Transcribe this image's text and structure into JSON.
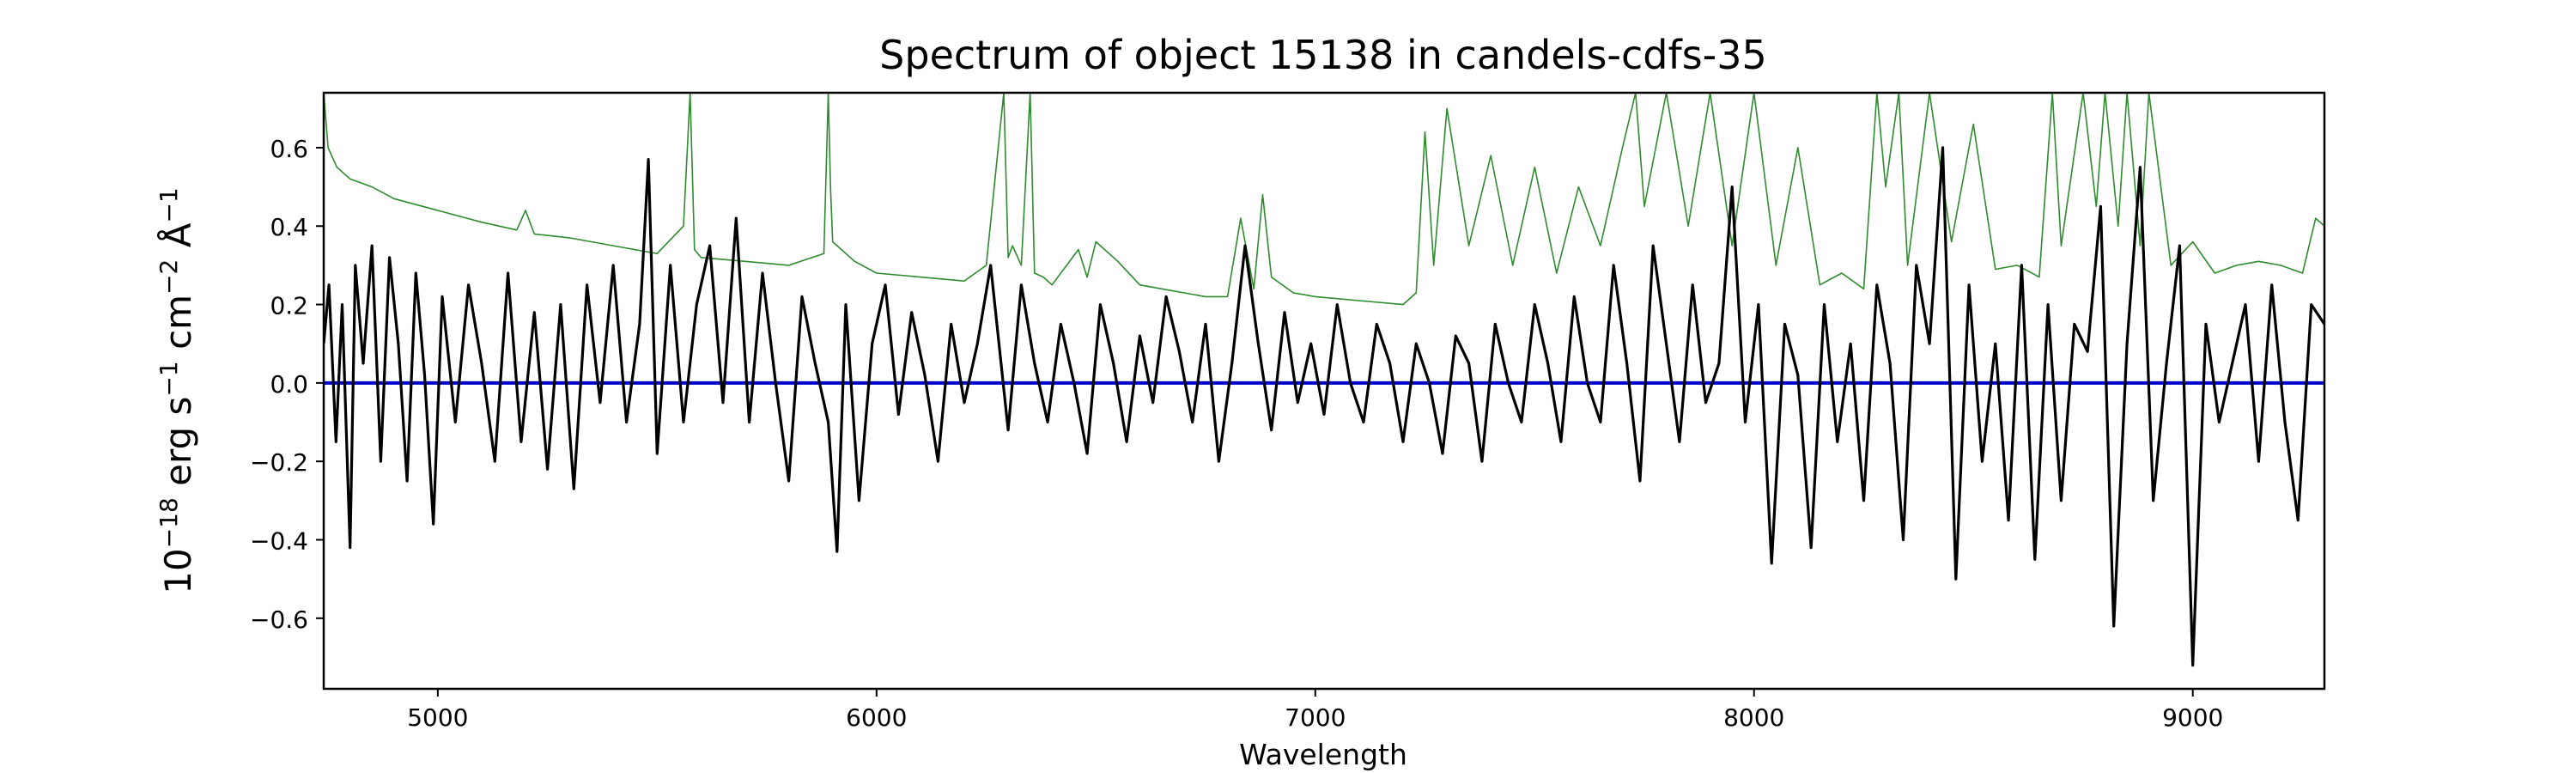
{
  "chart_data": {
    "type": "line",
    "title": "Spectrum of object 15138 in candels-cdfs-35",
    "xlabel": "Wavelength",
    "ylabel": {
      "base": "10",
      "exp1": "−18",
      "t1": " erg s",
      "exp2": "−1",
      "t2": " cm",
      "exp3": "−2",
      "t3": " Å",
      "exp4": "−1"
    },
    "xlim": [
      4740,
      9300
    ],
    "ylim": [
      -0.78,
      0.74
    ],
    "xticks": [
      5000,
      6000,
      7000,
      8000,
      9000
    ],
    "xtick_labels": [
      "5000",
      "6000",
      "7000",
      "8000",
      "9000"
    ],
    "yticks": [
      -0.6,
      -0.4,
      -0.2,
      0.0,
      0.2,
      0.4,
      0.6
    ],
    "ytick_labels": [
      "−0.6",
      "−0.4",
      "−0.2",
      "0.0",
      "0.2",
      "0.4",
      "0.6"
    ],
    "grid": false,
    "series": [
      {
        "role": "zero line",
        "color": "#0000cc",
        "x": [
          4740,
          9300
        ],
        "y": [
          0.0,
          0.0
        ]
      },
      {
        "role": "error spectrum",
        "color": "#2e8b2e",
        "x": [
          4740,
          4750,
          4770,
          4800,
          4850,
          4900,
          5000,
          5100,
          5180,
          5200,
          5220,
          5300,
          5400,
          5500,
          5560,
          5575,
          5585,
          5600,
          5700,
          5800,
          5880,
          5890,
          5895,
          5900,
          5950,
          6000,
          6100,
          6200,
          6250,
          6290,
          6300,
          6310,
          6330,
          6350,
          6360,
          6380,
          6400,
          6460,
          6480,
          6500,
          6550,
          6600,
          6650,
          6700,
          6750,
          6800,
          6830,
          6860,
          6880,
          6900,
          6950,
          7000,
          7100,
          7200,
          7230,
          7250,
          7270,
          7300,
          7350,
          7400,
          7450,
          7500,
          7550,
          7600,
          7650,
          7700,
          7730,
          7750,
          7800,
          7850,
          7900,
          7950,
          8000,
          8050,
          8100,
          8150,
          8200,
          8250,
          8280,
          8300,
          8330,
          8350,
          8400,
          8450,
          8500,
          8550,
          8600,
          8650,
          8680,
          8700,
          8750,
          8780,
          8800,
          8830,
          8850,
          8880,
          8900,
          8950,
          9000,
          9050,
          9100,
          9150,
          9200,
          9250,
          9280,
          9300
        ],
        "y": [
          0.74,
          0.6,
          0.55,
          0.52,
          0.5,
          0.47,
          0.44,
          0.41,
          0.39,
          0.44,
          0.38,
          0.37,
          0.35,
          0.33,
          0.4,
          0.74,
          0.34,
          0.32,
          0.31,
          0.3,
          0.33,
          0.74,
          0.5,
          0.36,
          0.31,
          0.28,
          0.27,
          0.26,
          0.3,
          0.74,
          0.32,
          0.35,
          0.3,
          0.74,
          0.28,
          0.27,
          0.25,
          0.34,
          0.27,
          0.36,
          0.31,
          0.25,
          0.24,
          0.23,
          0.22,
          0.22,
          0.42,
          0.24,
          0.48,
          0.27,
          0.23,
          0.22,
          0.21,
          0.2,
          0.23,
          0.64,
          0.3,
          0.7,
          0.35,
          0.58,
          0.3,
          0.55,
          0.28,
          0.5,
          0.35,
          0.6,
          0.74,
          0.45,
          0.74,
          0.4,
          0.74,
          0.35,
          0.74,
          0.3,
          0.6,
          0.25,
          0.28,
          0.24,
          0.74,
          0.5,
          0.74,
          0.3,
          0.74,
          0.36,
          0.66,
          0.29,
          0.3,
          0.27,
          0.74,
          0.35,
          0.74,
          0.45,
          0.74,
          0.4,
          0.74,
          0.35,
          0.74,
          0.3,
          0.36,
          0.28,
          0.3,
          0.31,
          0.3,
          0.28,
          0.42,
          0.4
        ]
      },
      {
        "role": "flux spectrum",
        "color": "#000000",
        "x": [
          4740,
          4752,
          4768,
          4782,
          4800,
          4812,
          4830,
          4850,
          4870,
          4890,
          4910,
          4930,
          4950,
          4970,
          4990,
          5010,
          5040,
          5070,
          5100,
          5130,
          5160,
          5190,
          5220,
          5250,
          5280,
          5310,
          5340,
          5370,
          5400,
          5430,
          5460,
          5480,
          5500,
          5530,
          5560,
          5590,
          5620,
          5650,
          5680,
          5710,
          5740,
          5770,
          5800,
          5830,
          5860,
          5890,
          5910,
          5930,
          5960,
          5990,
          6020,
          6050,
          6080,
          6110,
          6140,
          6170,
          6200,
          6230,
          6260,
          6300,
          6330,
          6360,
          6390,
          6420,
          6450,
          6480,
          6510,
          6540,
          6570,
          6600,
          6630,
          6660,
          6690,
          6720,
          6750,
          6780,
          6810,
          6840,
          6870,
          6900,
          6930,
          6960,
          6990,
          7020,
          7050,
          7080,
          7110,
          7140,
          7170,
          7200,
          7230,
          7260,
          7290,
          7320,
          7350,
          7380,
          7410,
          7440,
          7470,
          7500,
          7530,
          7560,
          7590,
          7620,
          7650,
          7680,
          7710,
          7740,
          7770,
          7800,
          7830,
          7860,
          7890,
          7920,
          7950,
          7980,
          8010,
          8040,
          8070,
          8100,
          8130,
          8160,
          8190,
          8220,
          8250,
          8280,
          8310,
          8340,
          8370,
          8400,
          8430,
          8460,
          8490,
          8520,
          8550,
          8580,
          8610,
          8640,
          8670,
          8700,
          8730,
          8760,
          8790,
          8820,
          8850,
          8880,
          8910,
          8940,
          8970,
          9000,
          9030,
          9060,
          9090,
          9120,
          9150,
          9180,
          9210,
          9240,
          9270,
          9300
        ],
        "y": [
          0.1,
          0.25,
          -0.15,
          0.2,
          -0.42,
          0.3,
          0.05,
          0.35,
          -0.2,
          0.32,
          0.1,
          -0.25,
          0.28,
          0.02,
          -0.36,
          0.22,
          -0.1,
          0.25,
          0.05,
          -0.2,
          0.28,
          -0.15,
          0.18,
          -0.22,
          0.2,
          -0.27,
          0.25,
          -0.05,
          0.3,
          -0.1,
          0.15,
          0.57,
          -0.18,
          0.3,
          -0.1,
          0.2,
          0.35,
          -0.05,
          0.42,
          -0.1,
          0.28,
          0.0,
          -0.25,
          0.22,
          0.05,
          -0.1,
          -0.43,
          0.2,
          -0.3,
          0.1,
          0.25,
          -0.08,
          0.18,
          0.02,
          -0.2,
          0.15,
          -0.05,
          0.1,
          0.3,
          -0.12,
          0.25,
          0.05,
          -0.1,
          0.15,
          0.0,
          -0.18,
          0.2,
          0.05,
          -0.15,
          0.12,
          -0.05,
          0.22,
          0.08,
          -0.1,
          0.15,
          -0.2,
          0.05,
          0.35,
          0.1,
          -0.12,
          0.18,
          -0.05,
          0.1,
          -0.08,
          0.2,
          0.0,
          -0.1,
          0.15,
          0.05,
          -0.15,
          0.1,
          0.0,
          -0.18,
          0.12,
          0.05,
          -0.2,
          0.15,
          0.0,
          -0.1,
          0.2,
          0.05,
          -0.15,
          0.22,
          0.0,
          -0.1,
          0.3,
          0.05,
          -0.25,
          0.35,
          0.1,
          -0.15,
          0.25,
          -0.05,
          0.05,
          0.5,
          -0.1,
          0.2,
          -0.46,
          0.15,
          0.02,
          -0.42,
          0.2,
          -0.15,
          0.1,
          -0.3,
          0.25,
          0.05,
          -0.4,
          0.3,
          0.1,
          0.6,
          -0.5,
          0.25,
          -0.2,
          0.1,
          -0.35,
          0.3,
          -0.45,
          0.2,
          -0.3,
          0.15,
          0.08,
          0.45,
          -0.62,
          0.1,
          0.55,
          -0.3,
          0.05,
          0.35,
          -0.72,
          0.15,
          -0.1,
          0.05,
          0.2,
          -0.2,
          0.25,
          -0.1,
          -0.35,
          0.2,
          0.15
        ]
      }
    ]
  }
}
